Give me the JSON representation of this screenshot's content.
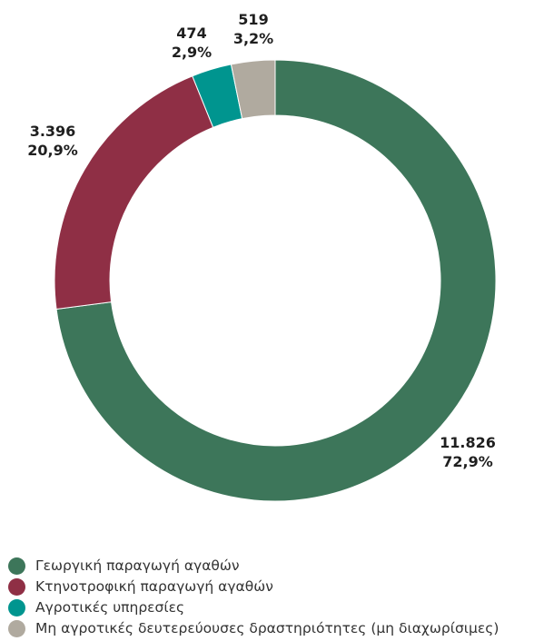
{
  "chart_data": {
    "type": "pie",
    "variant": "donut",
    "title": "",
    "slices": [
      {
        "name": "Γεωργική παραγωγή αγαθών",
        "value": 11826,
        "value_label": "11.826",
        "percent": 72.9,
        "percent_label": "72,9%",
        "color": "#3d765a"
      },
      {
        "name": "Κτηνοτροφική παραγωγή αγαθών",
        "value": 3396,
        "value_label": "3.396",
        "percent": 20.9,
        "percent_label": "20,9%",
        "color": "#8f2f45"
      },
      {
        "name": "Αγροτικές υπηρεσίες",
        "value": 474,
        "value_label": "474",
        "percent": 2.9,
        "percent_label": "2,9%",
        "color": "#00958f"
      },
      {
        "name": "Μη αγροτικές δευτερεύουσες δραστηριότητες (μη διαχωρίσιμες)",
        "value": 519,
        "value_label": "519",
        "percent": 3.2,
        "percent_label": "3,2%",
        "color": "#b0aa9f"
      }
    ],
    "legend_position": "bottom-left"
  }
}
